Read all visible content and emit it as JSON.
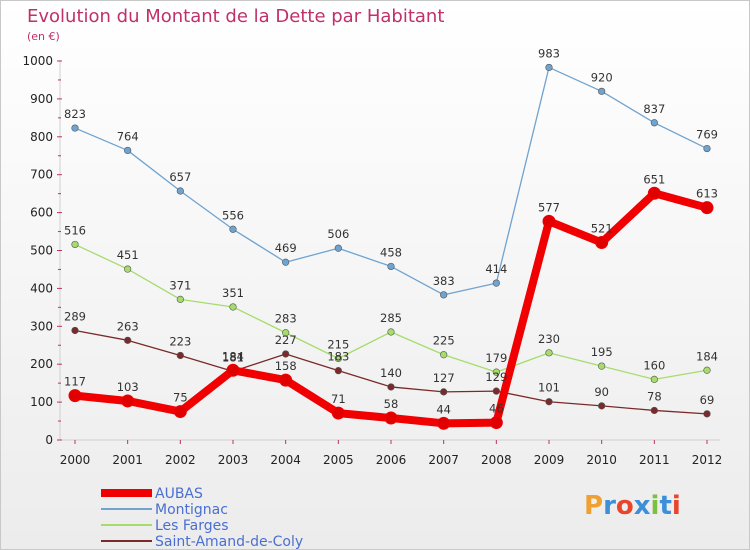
{
  "chart_data": {
    "type": "line",
    "title": "Evolution du Montant de la Dette par Habitant",
    "subtitle": "(en €)",
    "x": [
      "2000",
      "2001",
      "2002",
      "2003",
      "2004",
      "2005",
      "2006",
      "2007",
      "2008",
      "2009",
      "2010",
      "2011",
      "2012"
    ],
    "ylim": [
      0,
      1000
    ],
    "yticks": [
      0,
      100,
      200,
      300,
      400,
      500,
      600,
      700,
      800,
      900,
      1000
    ],
    "grid": false,
    "legend_position": "bottom-left",
    "series": [
      {
        "name": "AUBAS",
        "color": "#f00000",
        "values": [
          117,
          103,
          75,
          184,
          158,
          71,
          58,
          44,
          46,
          577,
          521,
          651,
          613
        ]
      },
      {
        "name": "Montignac",
        "color": "#6fa3d0",
        "values": [
          823,
          764,
          657,
          556,
          469,
          506,
          458,
          383,
          414,
          983,
          920,
          837,
          769
        ]
      },
      {
        "name": "Les Farges",
        "color": "#a6dc6c",
        "values": [
          516,
          451,
          371,
          351,
          283,
          215,
          285,
          225,
          179,
          230,
          195,
          160,
          184
        ]
      },
      {
        "name": "Saint-Amand-de-Coly",
        "color": "#7a2a2a",
        "values": [
          289,
          263,
          223,
          181,
          227,
          183,
          140,
          127,
          129,
          101,
          90,
          78,
          69
        ]
      }
    ]
  },
  "logo": {
    "text": "Proxiti",
    "colors": [
      "#f0a030",
      "#3d8fd8",
      "#e8452a",
      "#3d8fd8",
      "#7ac043",
      "#3d8fd8",
      "#e8452a"
    ]
  }
}
